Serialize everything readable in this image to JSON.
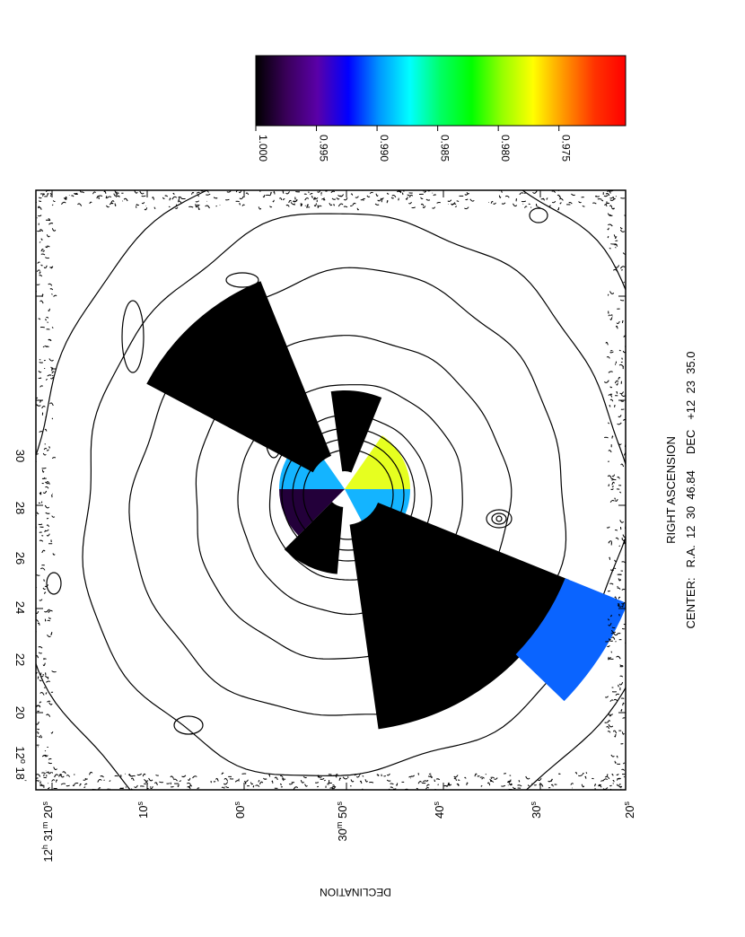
{
  "chart_data": {
    "type": "heatmap",
    "title": "",
    "xlabel": "RIGHT ASCENSION",
    "ylabel": "DECLINATION",
    "center_label": "CENTER:   R.A.  12  30  46.84     DEC   +12  23  35.0",
    "x_ticks": [
      {
        "label": "12h 31m 20s",
        "parts": [
          "12",
          "h",
          "31",
          "m",
          "20",
          "s"
        ]
      },
      {
        "label": "10s",
        "parts": [
          "10",
          "s"
        ]
      },
      {
        "label": "00s",
        "parts": [
          "00",
          "s"
        ]
      },
      {
        "label": "30m 50s",
        "parts": [
          "30",
          "m",
          "50",
          "s"
        ]
      },
      {
        "label": "40s",
        "parts": [
          "40",
          "s"
        ]
      },
      {
        "label": "30s",
        "parts": [
          "30",
          "s"
        ]
      },
      {
        "label": "20s",
        "parts": [
          "20",
          "s"
        ]
      }
    ],
    "y_ticks": [
      {
        "label": "12° 18'",
        "value": 18
      },
      {
        "label": "20",
        "value": 20
      },
      {
        "label": "22",
        "value": 22
      },
      {
        "label": "24",
        "value": 24
      },
      {
        "label": "26",
        "value": 26
      },
      {
        "label": "28",
        "value": 28
      },
      {
        "label": "30",
        "value": 30
      }
    ],
    "y_first_tick_parts": [
      "12",
      "o",
      "18",
      "'"
    ],
    "colorbar": {
      "ticks": [
        "1.000",
        "0.995",
        "0.990",
        "0.985",
        "0.980",
        "0.975"
      ],
      "tick_values": [
        1.0,
        0.995,
        0.99,
        0.985,
        0.98,
        0.975
      ],
      "range": [
        1.0,
        0.9695
      ],
      "stops": [
        "#000000",
        "#3a005a",
        "#5a00a8",
        "#0000ff",
        "#0096ff",
        "#00ffff",
        "#00ff64",
        "#00ff00",
        "#96ff00",
        "#ffff00",
        "#ff9600",
        "#ff3200",
        "#ff0000"
      ]
    },
    "sectors": [
      {
        "region": "inner",
        "value": 0.9965,
        "color": "#23003a"
      },
      {
        "region": "inner",
        "value": 0.978,
        "color": "#e6ff20"
      },
      {
        "region": "inner",
        "value": 0.9885,
        "color": "#14b4ff"
      },
      {
        "region": "inner",
        "value": 0.9885,
        "color": "#14b4ff"
      },
      {
        "region": "inner-core",
        "value": 1.0,
        "color": "#000000"
      },
      {
        "region": "outer",
        "value": 1.0,
        "color": "#000000"
      },
      {
        "region": "outer",
        "value": 1.0,
        "color": "#000000"
      },
      {
        "region": "outer",
        "value": 0.9925,
        "color": "#0a64ff"
      }
    ]
  }
}
